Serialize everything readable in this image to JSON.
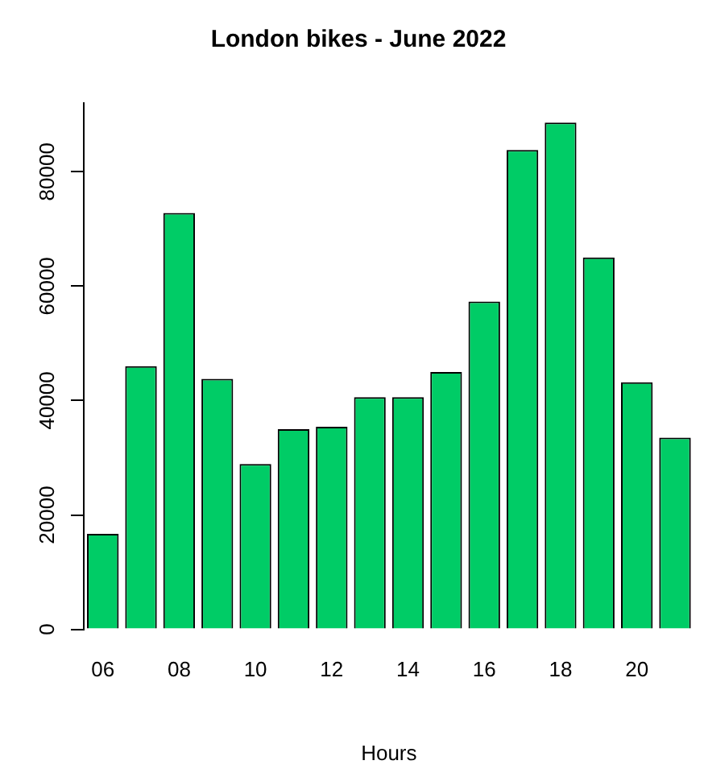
{
  "chart_data": {
    "type": "bar",
    "title": "London bikes - June 2022",
    "xlabel": "Hours",
    "categories": [
      "06",
      null,
      "08",
      null,
      "10",
      null,
      "12",
      null,
      "14",
      null,
      "16",
      null,
      "18",
      null,
      "20",
      null
    ],
    "values": [
      16700,
      46000,
      72800,
      43800,
      28900,
      35000,
      35400,
      40600,
      40600,
      45000,
      57300,
      83800,
      88600,
      65000,
      43200,
      33500
    ],
    "color": "#00cc66",
    "ylim": [
      0,
      92000
    ],
    "yticks": [
      0,
      20000,
      40000,
      60000,
      80000
    ],
    "grid": false,
    "legend": false
  }
}
